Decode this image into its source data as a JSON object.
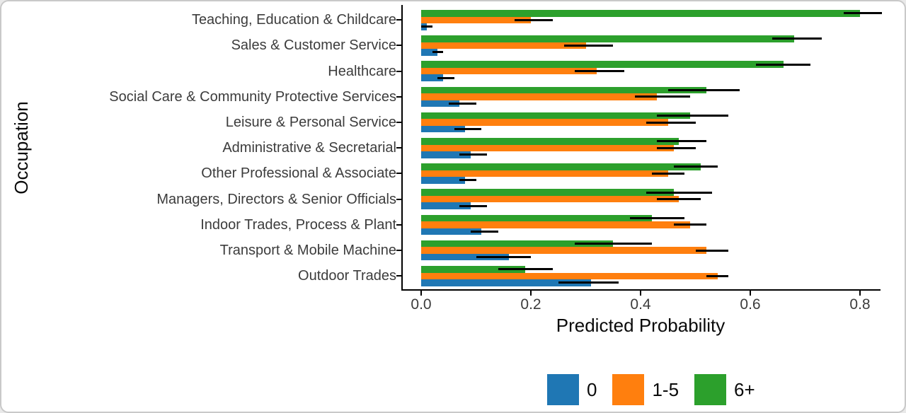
{
  "figure": {
    "y_axis_title": "Occupation",
    "x_axis_title": "Predicted Probability"
  },
  "chart_data": {
    "type": "bar",
    "orientation": "horizontal",
    "title": "",
    "xlabel": "Predicted Probability",
    "ylabel": "Occupation",
    "xlim": [
      0,
      0.84
    ],
    "grid": false,
    "error_bars": true,
    "legend_position": "bottom",
    "x_ticks": [
      0.0,
      0.2,
      0.4,
      0.6,
      0.8
    ],
    "x_tick_labels": [
      "0.0",
      "0.2",
      "0.4",
      "0.6",
      "0.8"
    ],
    "categories": [
      "Teaching, Education & Childcare",
      "Sales & Customer Service",
      "Healthcare",
      "Social Care & Community Protective Services",
      "Leisure & Personal Service",
      "Administrative & Secretarial",
      "Other Professional & Associate",
      "Managers, Directors & Senior Officials",
      "Indoor Trades, Process & Plant",
      "Transport & Mobile Machine",
      "Outdoor Trades"
    ],
    "series": [
      {
        "name": "0",
        "color": "#1f77b4",
        "values": [
          0.01,
          0.03,
          0.04,
          0.07,
          0.08,
          0.09,
          0.08,
          0.09,
          0.11,
          0.16,
          0.31
        ],
        "ci_low": [
          0.0,
          0.02,
          0.03,
          0.05,
          0.06,
          0.07,
          0.07,
          0.07,
          0.09,
          0.1,
          0.25
        ],
        "ci_high": [
          0.02,
          0.04,
          0.06,
          0.1,
          0.11,
          0.12,
          0.1,
          0.12,
          0.14,
          0.2,
          0.36
        ]
      },
      {
        "name": "1-5",
        "color": "#ff7f0e",
        "values": [
          0.2,
          0.3,
          0.32,
          0.43,
          0.45,
          0.46,
          0.45,
          0.47,
          0.49,
          0.52,
          0.54
        ],
        "ci_low": [
          0.17,
          0.26,
          0.28,
          0.39,
          0.41,
          0.43,
          0.42,
          0.43,
          0.46,
          0.5,
          0.52
        ],
        "ci_high": [
          0.24,
          0.35,
          0.37,
          0.49,
          0.5,
          0.5,
          0.48,
          0.51,
          0.52,
          0.56,
          0.56
        ]
      },
      {
        "name": "6+",
        "color": "#2ca02c",
        "values": [
          0.8,
          0.68,
          0.66,
          0.52,
          0.49,
          0.47,
          0.51,
          0.46,
          0.42,
          0.35,
          0.19
        ],
        "ci_low": [
          0.77,
          0.64,
          0.61,
          0.45,
          0.43,
          0.43,
          0.46,
          0.41,
          0.38,
          0.28,
          0.14
        ],
        "ci_high": [
          0.84,
          0.73,
          0.71,
          0.58,
          0.56,
          0.52,
          0.54,
          0.53,
          0.48,
          0.42,
          0.24
        ]
      }
    ],
    "bar_draw_order_top_to_bottom": [
      "6+",
      "1-5",
      "0"
    ]
  }
}
